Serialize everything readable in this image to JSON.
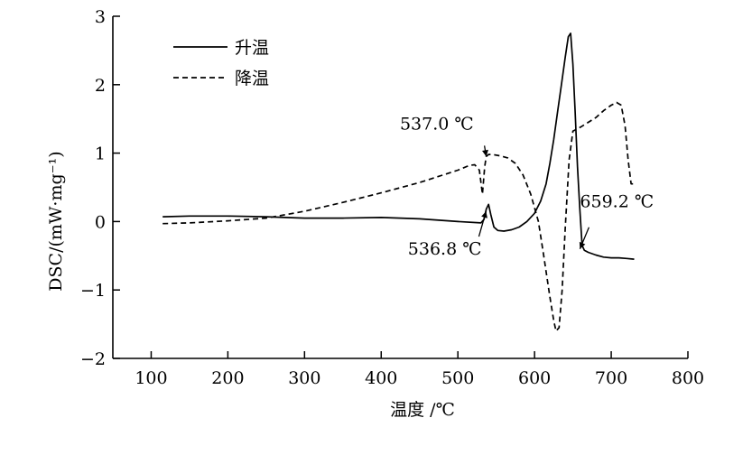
{
  "chart_data": {
    "type": "line",
    "xlabel": "温度 /℃",
    "ylabel": "DSC/(mW·mg⁻¹)",
    "xlim": [
      50,
      800
    ],
    "ylim": [
      -2,
      3
    ],
    "xticks": [
      100,
      200,
      300,
      400,
      500,
      600,
      700,
      800
    ],
    "yticks": [
      -2,
      -1,
      0,
      1,
      2,
      3
    ],
    "grid": false,
    "legend_position": "top-left",
    "series": [
      {
        "name": "升温",
        "style": "solid",
        "x": [
          115,
          150,
          200,
          250,
          300,
          350,
          400,
          450,
          500,
          530,
          534,
          537,
          540,
          543,
          547,
          552,
          560,
          570,
          580,
          590,
          600,
          608,
          615,
          620,
          625,
          630,
          635,
          640,
          644,
          647,
          650,
          653,
          656,
          659,
          662,
          665,
          670,
          680,
          690,
          700,
          710,
          720,
          730
        ],
        "y": [
          0.07,
          0.08,
          0.08,
          0.07,
          0.05,
          0.05,
          0.06,
          0.04,
          0.0,
          -0.02,
          0.03,
          0.18,
          0.25,
          0.1,
          -0.08,
          -0.13,
          -0.14,
          -0.12,
          -0.08,
          0.0,
          0.12,
          0.3,
          0.55,
          0.85,
          1.2,
          1.6,
          2.0,
          2.4,
          2.7,
          2.75,
          2.3,
          1.6,
          0.8,
          0.2,
          -0.35,
          -0.42,
          -0.45,
          -0.49,
          -0.52,
          -0.53,
          -0.53,
          -0.54,
          -0.55
        ]
      },
      {
        "name": "降温",
        "style": "dashed",
        "x": [
          115,
          150,
          200,
          250,
          300,
          350,
          400,
          450,
          500,
          515,
          522,
          528,
          532,
          535,
          537,
          540,
          545,
          555,
          565,
          575,
          585,
          595,
          605,
          612,
          620,
          625,
          628,
          632,
          636,
          640,
          645,
          650,
          660,
          670,
          680,
          690,
          700,
          707,
          713,
          718,
          722,
          726,
          730
        ],
        "y": [
          -0.03,
          -0.02,
          0.01,
          0.05,
          0.15,
          0.28,
          0.42,
          0.57,
          0.75,
          0.82,
          0.83,
          0.75,
          0.4,
          0.8,
          0.95,
          0.98,
          0.98,
          0.96,
          0.93,
          0.85,
          0.68,
          0.4,
          0.0,
          -0.5,
          -1.1,
          -1.45,
          -1.6,
          -1.55,
          -1.0,
          -0.1,
          0.9,
          1.32,
          1.38,
          1.45,
          1.52,
          1.62,
          1.7,
          1.74,
          1.7,
          1.4,
          0.9,
          0.55,
          0.55
        ]
      }
    ],
    "annotations": [
      {
        "text": "537.0 ℃",
        "x": 537.0,
        "y": 0.95,
        "series": "降温"
      },
      {
        "text": "536.8 ℃",
        "x": 536.8,
        "y": 0.15,
        "series": "升温"
      },
      {
        "text": "659.2 ℃",
        "x": 659.2,
        "y": -0.4,
        "series": "升温"
      }
    ]
  },
  "colors": {
    "line": "#000000",
    "background": "#ffffff"
  }
}
